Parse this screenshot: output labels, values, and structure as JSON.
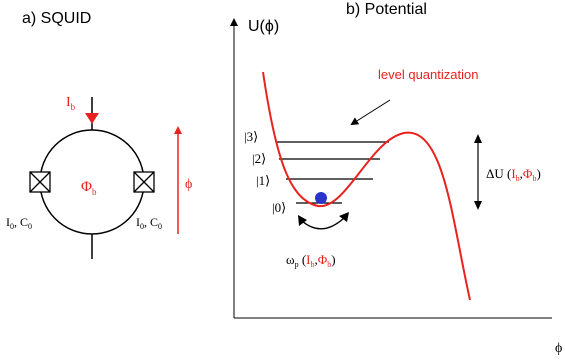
{
  "colors": {
    "accent": "#e8231f",
    "ink": "#000000",
    "particle": "#2a35c8"
  },
  "squid": {
    "title": "a) SQUID",
    "bias_current": {
      "symbol": "I",
      "sub": "b"
    },
    "flux": {
      "symbol": "Φ",
      "sub": "b"
    },
    "phase": "ϕ",
    "junction_left": {
      "i": "I",
      "i_sub": "0",
      "c": "C",
      "c_sub": "0",
      "sep": ", "
    },
    "junction_right": {
      "i": "I",
      "i_sub": "0",
      "c": "C",
      "c_sub": "0",
      "sep": ", "
    }
  },
  "potential": {
    "title": "b) Potential",
    "y_axis_label": "U(ϕ)",
    "x_axis_label": "ϕ",
    "annotation": "level quantization",
    "levels": [
      "|3⟩",
      "|2⟩",
      "|1⟩",
      "|0⟩"
    ],
    "barrier": {
      "prefix": "ΔU (",
      "i": "I",
      "i_sub": "b",
      "comma": ",",
      "phi": "Φ",
      "phi_sub": "b",
      "suffix": ")"
    },
    "plasma": {
      "omega": "ω",
      "omega_sub": "p",
      "open": " (",
      "i": "I",
      "i_sub": "b",
      "comma": ",",
      "phi": "Φ",
      "phi_sub": "b",
      "close": ")"
    }
  }
}
